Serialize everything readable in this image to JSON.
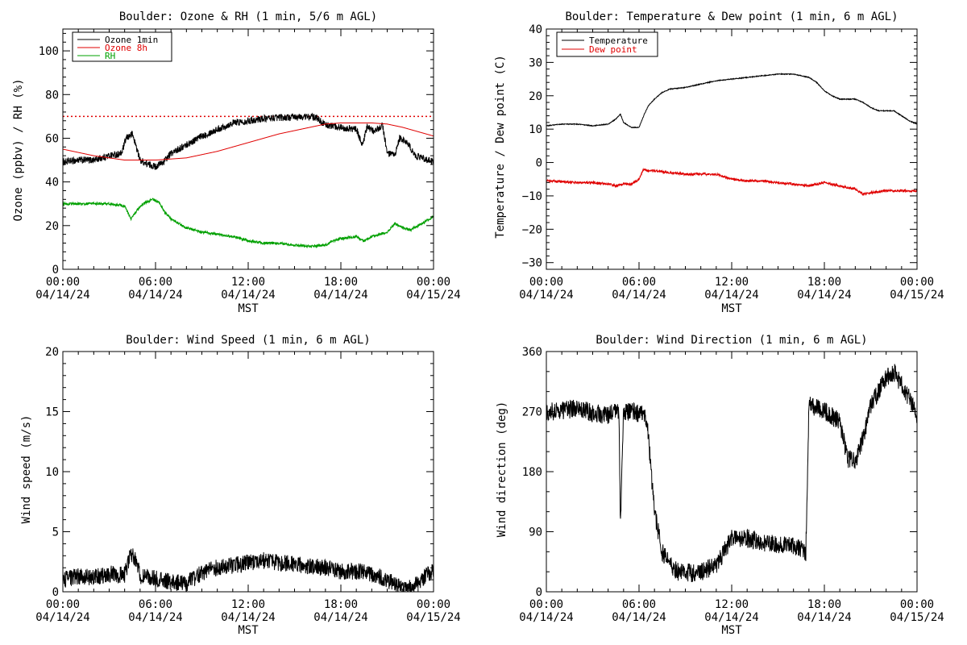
{
  "figure": {
    "time_axis": {
      "tick_times": [
        "00:00",
        "06:00",
        "12:00",
        "18:00",
        "00:00"
      ],
      "tick_dates": [
        "04/14/24",
        "04/14/24",
        "04/14/24",
        "04/14/24",
        "04/15/24"
      ],
      "label": "MST"
    }
  },
  "chart_data": [
    {
      "id": "ozone-rh",
      "type": "line",
      "title": "Boulder: Ozone & RH (1 min, 5/6 m AGL)",
      "xlabel": "MST",
      "ylabel": "Ozone (ppbv) / RH (%)",
      "xlim": [
        0,
        24
      ],
      "ylim": [
        0,
        110
      ],
      "yticks": [
        0,
        20,
        40,
        60,
        80,
        100
      ],
      "ytick_labels": [
        "0",
        "20",
        "40",
        "60",
        "80",
        "100"
      ],
      "minor_yticks": 5,
      "legend_position": "top-left",
      "reference_line": {
        "y": 70,
        "style": "dotted",
        "color": "#e00000"
      },
      "series": [
        {
          "name": "Ozone 1min",
          "color": "#000000",
          "noise": 1.6,
          "x": [
            0,
            1,
            2,
            3,
            3.8,
            4.1,
            4.5,
            4.8,
            5.0,
            5.5,
            6.0,
            6.5,
            7.0,
            8.0,
            9.0,
            10.0,
            11.0,
            12.0,
            13.0,
            14.0,
            15.0,
            16.0,
            16.5,
            17.0,
            18.0,
            19.0,
            19.4,
            19.7,
            20.2,
            20.7,
            21.0,
            21.5,
            21.8,
            22.3,
            22.8,
            23.3,
            24.0
          ],
          "y": [
            49,
            50,
            50,
            52,
            53,
            60,
            62,
            55,
            50,
            48,
            47,
            49,
            53,
            57,
            61,
            64,
            67,
            68,
            69,
            69.5,
            69.5,
            70,
            69,
            66,
            65,
            64,
            57,
            65,
            63,
            66,
            53,
            52,
            60,
            58,
            52,
            51,
            49
          ]
        },
        {
          "name": "Ozone 8h",
          "color": "#e00000",
          "noise": 0,
          "x": [
            0,
            2,
            4,
            6,
            8,
            10,
            12,
            14,
            16,
            17,
            18,
            19,
            20,
            21,
            22,
            23,
            24
          ],
          "y": [
            55,
            52,
            50,
            50,
            51,
            54,
            58,
            62,
            65,
            66.5,
            67,
            67,
            67,
            66.5,
            65,
            63,
            61
          ]
        },
        {
          "name": "RH",
          "color": "#00a000",
          "noise": 0.6,
          "x": [
            0,
            1,
            2,
            3,
            4,
            4.4,
            4.8,
            5.2,
            5.8,
            6.2,
            6.6,
            7.0,
            7.5,
            8.0,
            9.0,
            10.0,
            11.0,
            12.0,
            13.0,
            14.0,
            15.0,
            16.0,
            17.0,
            17.5,
            18.0,
            19.0,
            19.5,
            20.0,
            21.0,
            21.5,
            22.0,
            22.5,
            23.0,
            23.5,
            24.0
          ],
          "y": [
            30,
            30,
            30,
            30,
            29,
            23,
            27,
            30,
            32,
            31,
            26,
            23,
            21,
            19,
            17,
            16,
            15,
            13,
            12,
            12,
            11,
            10.5,
            11,
            13,
            14,
            15,
            13,
            15,
            17,
            21,
            19,
            18,
            20,
            22,
            24
          ]
        }
      ]
    },
    {
      "id": "temp-dew",
      "type": "line",
      "title": "Boulder: Temperature & Dew point (1 min, 6 m AGL)",
      "xlabel": "MST",
      "ylabel": "Temperature / Dew point (C)",
      "xlim": [
        0,
        24
      ],
      "ylim": [
        -32,
        40
      ],
      "yticks": [
        -30,
        -20,
        -10,
        0,
        10,
        20,
        30,
        40
      ],
      "ytick_labels": [
        "−30",
        "−20",
        "−10",
        "0",
        "10",
        "20",
        "30",
        "40"
      ],
      "minor_yticks": 5,
      "legend_position": "top-left",
      "series": [
        {
          "name": "Temperature",
          "color": "#000000",
          "noise": 0.12,
          "x": [
            0,
            1,
            2,
            3,
            4,
            4.5,
            4.8,
            5.0,
            5.5,
            6.0,
            6.3,
            6.6,
            7.0,
            7.5,
            8.0,
            9.0,
            10.0,
            11.0,
            12.0,
            13.0,
            14.0,
            15.0,
            16.0,
            16.5,
            17.0,
            17.5,
            18.0,
            18.5,
            19.0,
            19.5,
            20.0,
            20.5,
            21.0,
            21.5,
            22.0,
            22.5,
            23.0,
            23.5,
            24.0
          ],
          "y": [
            11,
            11.5,
            11.5,
            11,
            11.5,
            13,
            14.5,
            12,
            10.5,
            10.5,
            14,
            17,
            19,
            21,
            22,
            22.5,
            23.5,
            24.5,
            25,
            25.5,
            26,
            26.5,
            26.5,
            26,
            25.5,
            24,
            21.5,
            20,
            19,
            19,
            19,
            18,
            16.5,
            15.5,
            15.5,
            15.5,
            14,
            12.5,
            11.5
          ]
        },
        {
          "name": "Dew point",
          "color": "#e00000",
          "noise": 0.35,
          "x": [
            0,
            2,
            3,
            4,
            4.5,
            5.0,
            5.5,
            6.0,
            6.3,
            6.6,
            7.0,
            8.0,
            9.0,
            10.0,
            11.0,
            12.0,
            13.0,
            14.0,
            15.0,
            16.0,
            17.0,
            17.5,
            18.0,
            19.0,
            20.0,
            20.5,
            21.0,
            22.0,
            23.0,
            24.0
          ],
          "y": [
            -5.5,
            -6,
            -6,
            -6.5,
            -7,
            -6.5,
            -6.5,
            -5,
            -2,
            -2.5,
            -2.5,
            -3,
            -3.5,
            -3.5,
            -3.5,
            -5,
            -5.5,
            -5.5,
            -6,
            -6.5,
            -7,
            -6.5,
            -6,
            -7,
            -8,
            -9.5,
            -9,
            -8.5,
            -8.5,
            -8.5
          ]
        }
      ]
    },
    {
      "id": "wind-speed",
      "type": "line",
      "title": "Boulder: Wind Speed (1 min, 6 m AGL)",
      "xlabel": "MST",
      "ylabel": "Wind speed (m/s)",
      "xlim": [
        0,
        24
      ],
      "ylim": [
        0,
        20
      ],
      "yticks": [
        0,
        5,
        10,
        15,
        20
      ],
      "ytick_labels": [
        "0",
        "5",
        "10",
        "15",
        "20"
      ],
      "minor_yticks": 5,
      "series": [
        {
          "name": "",
          "color": "#000000",
          "noise": 0.7,
          "clip_min": 0,
          "x": [
            0,
            1,
            2,
            3,
            4.0,
            4.4,
            4.7,
            5.0,
            6.0,
            7.0,
            8.0,
            9.0,
            10.0,
            11.0,
            12.0,
            13.0,
            14.0,
            15.0,
            16.0,
            17.0,
            18.0,
            19.0,
            20.0,
            21.0,
            21.5,
            22.0,
            22.5,
            23.0,
            23.5,
            24.0
          ],
          "y": [
            1,
            1.3,
            1.2,
            1.5,
            1.4,
            3.2,
            2.8,
            1.3,
            1.1,
            0.8,
            0.7,
            1.6,
            2.0,
            2.2,
            2.4,
            2.6,
            2.4,
            2.3,
            2.1,
            2.0,
            1.7,
            1.7,
            1.5,
            1.0,
            0.6,
            0.3,
            0.3,
            0.8,
            1.3,
            1.8
          ]
        }
      ]
    },
    {
      "id": "wind-direction",
      "type": "line",
      "title": "Boulder: Wind Direction (1 min, 6 m AGL)",
      "xlabel": "MST",
      "ylabel": "Wind direction (deg)",
      "xlim": [
        0,
        24
      ],
      "ylim": [
        0,
        360
      ],
      "yticks": [
        0,
        90,
        180,
        270,
        360
      ],
      "ytick_labels": [
        "0",
        "90",
        "180",
        "270",
        "360"
      ],
      "minor_yticks": 3,
      "series": [
        {
          "name": "",
          "color": "#000000",
          "noise": 14,
          "wrap": 360,
          "x": [
            0,
            1,
            2,
            3,
            4,
            4.7,
            4.8,
            5.0,
            6.0,
            6.5,
            7.0,
            7.5,
            8.0,
            8.5,
            9.0,
            10.0,
            11.0,
            11.5,
            12.0,
            13.0,
            14.0,
            15.0,
            16.0,
            16.8,
            17.0,
            17.5,
            18.0,
            19.0,
            19.5,
            20.0,
            20.5,
            21.0,
            21.5,
            22.0,
            22.5,
            23.0,
            23.5,
            24.0
          ],
          "y": [
            270,
            272,
            275,
            268,
            265,
            270,
            100,
            270,
            268,
            260,
            120,
            60,
            40,
            30,
            28,
            30,
            40,
            60,
            80,
            80,
            75,
            70,
            70,
            60,
            280,
            275,
            270,
            255,
            200,
            195,
            230,
            280,
            300,
            320,
            330,
            310,
            290,
            265
          ]
        }
      ]
    }
  ]
}
